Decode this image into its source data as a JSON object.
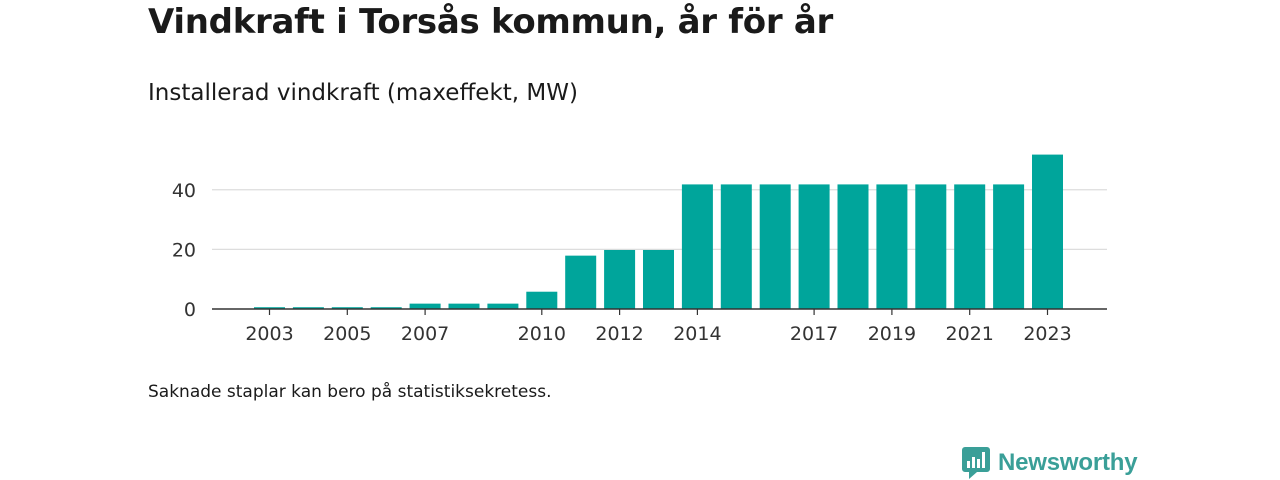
{
  "chart_data": {
    "type": "bar",
    "title": "Vindkraft i Torsås kommun, år för år",
    "subtitle": "Installerad vindkraft (maxeffekt, MW)",
    "categories": [
      2003,
      2004,
      2005,
      2006,
      2007,
      2008,
      2009,
      2010,
      2011,
      2012,
      2013,
      2014,
      2015,
      2016,
      2017,
      2018,
      2019,
      2020,
      2021,
      2022,
      2023
    ],
    "values": [
      0.6,
      0.6,
      0.6,
      0.6,
      1.8,
      1.8,
      1.8,
      5.8,
      17.9,
      19.8,
      19.8,
      41.8,
      41.8,
      41.8,
      41.8,
      41.8,
      41.8,
      41.8,
      41.8,
      41.8,
      51.8
    ],
    "x_tick_labels": [
      "2003",
      "2005",
      "2007",
      "2010",
      "2012",
      "2014",
      "2017",
      "2019",
      "2021",
      "2023"
    ],
    "y_ticks": [
      0,
      20,
      40
    ],
    "ylim": [
      0,
      52
    ],
    "xlabel": "",
    "ylabel": "",
    "grid": true,
    "legend": "none",
    "colors": {
      "bar": "#00a59b",
      "grid": "#dddddd",
      "axis": "#333333"
    }
  },
  "footnote": "Saknade staplar kan bero på statistiksekretess.",
  "brand": {
    "name": "Newsworthy",
    "icon": "bar-chart-speech-bubble-icon",
    "color": "#3a9f98"
  }
}
